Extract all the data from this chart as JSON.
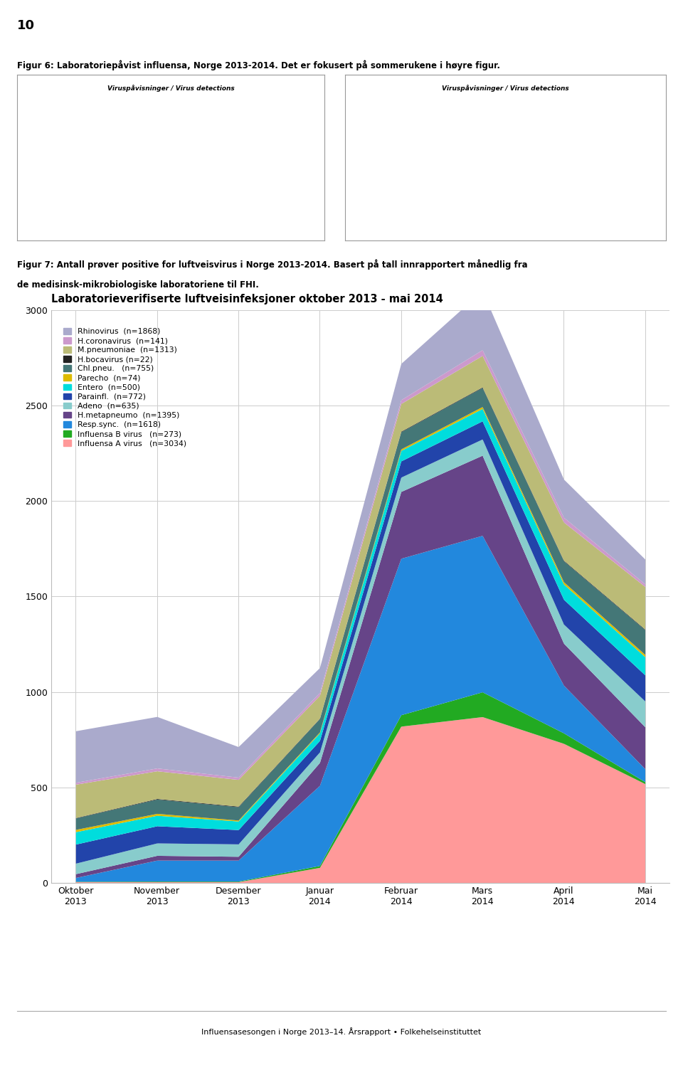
{
  "title": "Laboratorieverifiserte luftveisinfeksjoner oktober 2013 - mai 2014",
  "months": [
    "Oktober\n2013",
    "November\n2013",
    "Desember\n2013",
    "Januar\n2014",
    "Februar\n2014",
    "Mars\n2014",
    "April\n2014",
    "Mai\n2014"
  ],
  "x_positions": [
    0,
    1,
    2,
    3,
    4,
    5,
    6,
    7
  ],
  "series": [
    {
      "label": "Rhinovirus  (n=1868)",
      "color": "#AAAACC",
      "data": [
        270,
        270,
        160,
        130,
        190,
        310,
        200,
        130
      ]
    },
    {
      "label": "H.coronavirus  (n=141)",
      "color": "#CC99CC",
      "data": [
        10,
        15,
        12,
        15,
        20,
        30,
        25,
        14
      ]
    },
    {
      "label": "M.pneumoniae  (n=1313)",
      "color": "#BBBB77",
      "data": [
        175,
        145,
        140,
        120,
        145,
        165,
        200,
        223
      ]
    },
    {
      "label": "H.bocavirus (n=22)",
      "color": "#222222",
      "data": [
        2,
        3,
        3,
        2,
        3,
        3,
        3,
        3
      ]
    },
    {
      "label": "Chl.pneu.   (n=755)",
      "color": "#447777",
      "data": [
        60,
        75,
        70,
        70,
        90,
        100,
        110,
        130
      ]
    },
    {
      "label": "Parecho  (n=74)",
      "color": "#DDBB00",
      "data": [
        12,
        10,
        5,
        5,
        8,
        10,
        12,
        12
      ]
    },
    {
      "label": "Entero  (n=500)",
      "color": "#00DDDD",
      "data": [
        65,
        55,
        45,
        40,
        55,
        65,
        80,
        95
      ]
    },
    {
      "label": "Parainfl.  (n=772)",
      "color": "#2244AA",
      "data": [
        100,
        90,
        75,
        60,
        85,
        95,
        130,
        137
      ]
    },
    {
      "label": "Adeno  (n=635)",
      "color": "#88CCCC",
      "data": [
        55,
        65,
        65,
        55,
        75,
        85,
        100,
        135
      ]
    },
    {
      "label": "H.metapneumo  (n=1395)",
      "color": "#664488",
      "data": [
        20,
        25,
        20,
        120,
        350,
        420,
        220,
        220
      ]
    },
    {
      "label": "Resp.sync.  (n=1618)",
      "color": "#2288DD",
      "data": [
        20,
        110,
        110,
        420,
        820,
        820,
        250,
        68
      ]
    },
    {
      "label": "Influensa B virus   (n=273)",
      "color": "#22AA22",
      "data": [
        2,
        3,
        3,
        10,
        60,
        130,
        55,
        10
      ]
    },
    {
      "label": "Influensa A virus   (n=3034)",
      "color": "#FF9999",
      "data": [
        5,
        5,
        5,
        80,
        820,
        870,
        730,
        519
      ]
    }
  ],
  "ylim": [
    0,
    3000
  ],
  "yticks": [
    0,
    500,
    1000,
    1500,
    2000,
    2500,
    3000
  ],
  "figure_text1": "Figur 7: Antall prøver positive for luftveisvirus i Norge 2013-2014. Basert på tall innrapportert månedlig fra",
  "figure_text2": "de medisinsk-mikrobiologiske laboratoriene til FHI.",
  "page_number": "10",
  "figur6_text": "Figur 6: Laboratoriepåvist influensa, Norge 2013-2014. Det er fokusert på sommerukene i høyre figur.",
  "footer_text": "Influensasesongen i Norge 2013–14. Årsrapport • Folkehelseinstituttet",
  "background_color": "#ffffff"
}
